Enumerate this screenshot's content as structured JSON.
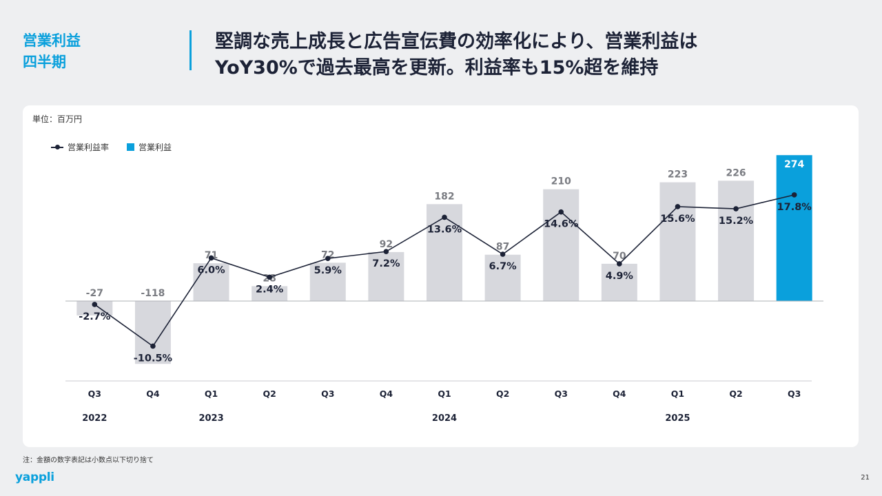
{
  "section": {
    "line1": "営業利益",
    "line2": "四半期"
  },
  "headline": {
    "line1": "堅調な売上成長と広告宣伝費の効率化により、営業利益は",
    "line2": "YoY30%で過去最高を更新。利益率も15%超を維持"
  },
  "unit_label": "単位：百万円",
  "legend": {
    "rate": "営業利益率",
    "profit": "営業利益"
  },
  "colors": {
    "accent": "#0aa0dc",
    "bar_gray": "#d7d8dd",
    "line": "#1c2236"
  },
  "chart_data": {
    "type": "bar",
    "categories": [
      "Q3",
      "Q4",
      "Q1",
      "Q2",
      "Q3",
      "Q4",
      "Q1",
      "Q2",
      "Q3",
      "Q4",
      "Q1",
      "Q2",
      "Q3"
    ],
    "year_labels": [
      {
        "label": "2022",
        "index": 0
      },
      {
        "label": "2023",
        "index": 2
      },
      {
        "label": "2024",
        "index": 6
      },
      {
        "label": "2025",
        "index": 10
      }
    ],
    "series": [
      {
        "name": "営業利益",
        "kind": "bar",
        "values": [
          -27,
          -118,
          71,
          28,
          72,
          92,
          182,
          87,
          210,
          70,
          223,
          226,
          274
        ],
        "labels": [
          "-27",
          "-118",
          "71",
          "28",
          "72",
          "92",
          "182",
          "87",
          "210",
          "70",
          "223",
          "226",
          "274"
        ],
        "highlight_index": 12
      },
      {
        "name": "営業利益率",
        "kind": "line",
        "values": [
          -2.7,
          -10.5,
          6.0,
          2.4,
          5.9,
          7.2,
          13.6,
          6.7,
          14.6,
          4.9,
          15.6,
          15.2,
          17.8
        ],
        "labels": [
          "-2.7%",
          "-10.5%",
          "6.0%",
          "2.4%",
          "5.9%",
          "7.2%",
          "13.6%",
          "6.7%",
          "14.6%",
          "4.9%",
          "15.6%",
          "15.2%",
          "17.8%"
        ]
      }
    ],
    "legend_position": "top-left"
  },
  "footnote": "注：金額の数字表記は小数点以下切り捨て",
  "logo": "yappli",
  "page_number": "21"
}
